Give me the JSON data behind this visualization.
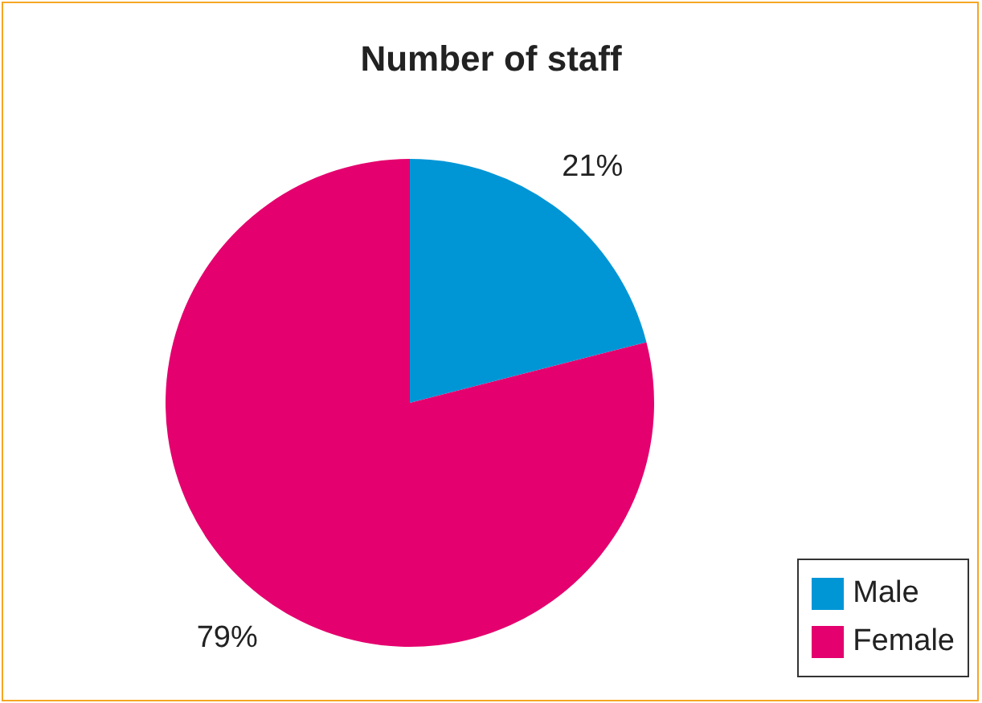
{
  "chart_data": {
    "type": "pie",
    "title": "Number of staff",
    "categories": [
      "Male",
      "Female"
    ],
    "values": [
      21,
      79
    ],
    "colors": [
      "#0096d6",
      "#e4006e"
    ],
    "value_labels": [
      "21%",
      "79%"
    ],
    "legend": "bottom right"
  }
}
